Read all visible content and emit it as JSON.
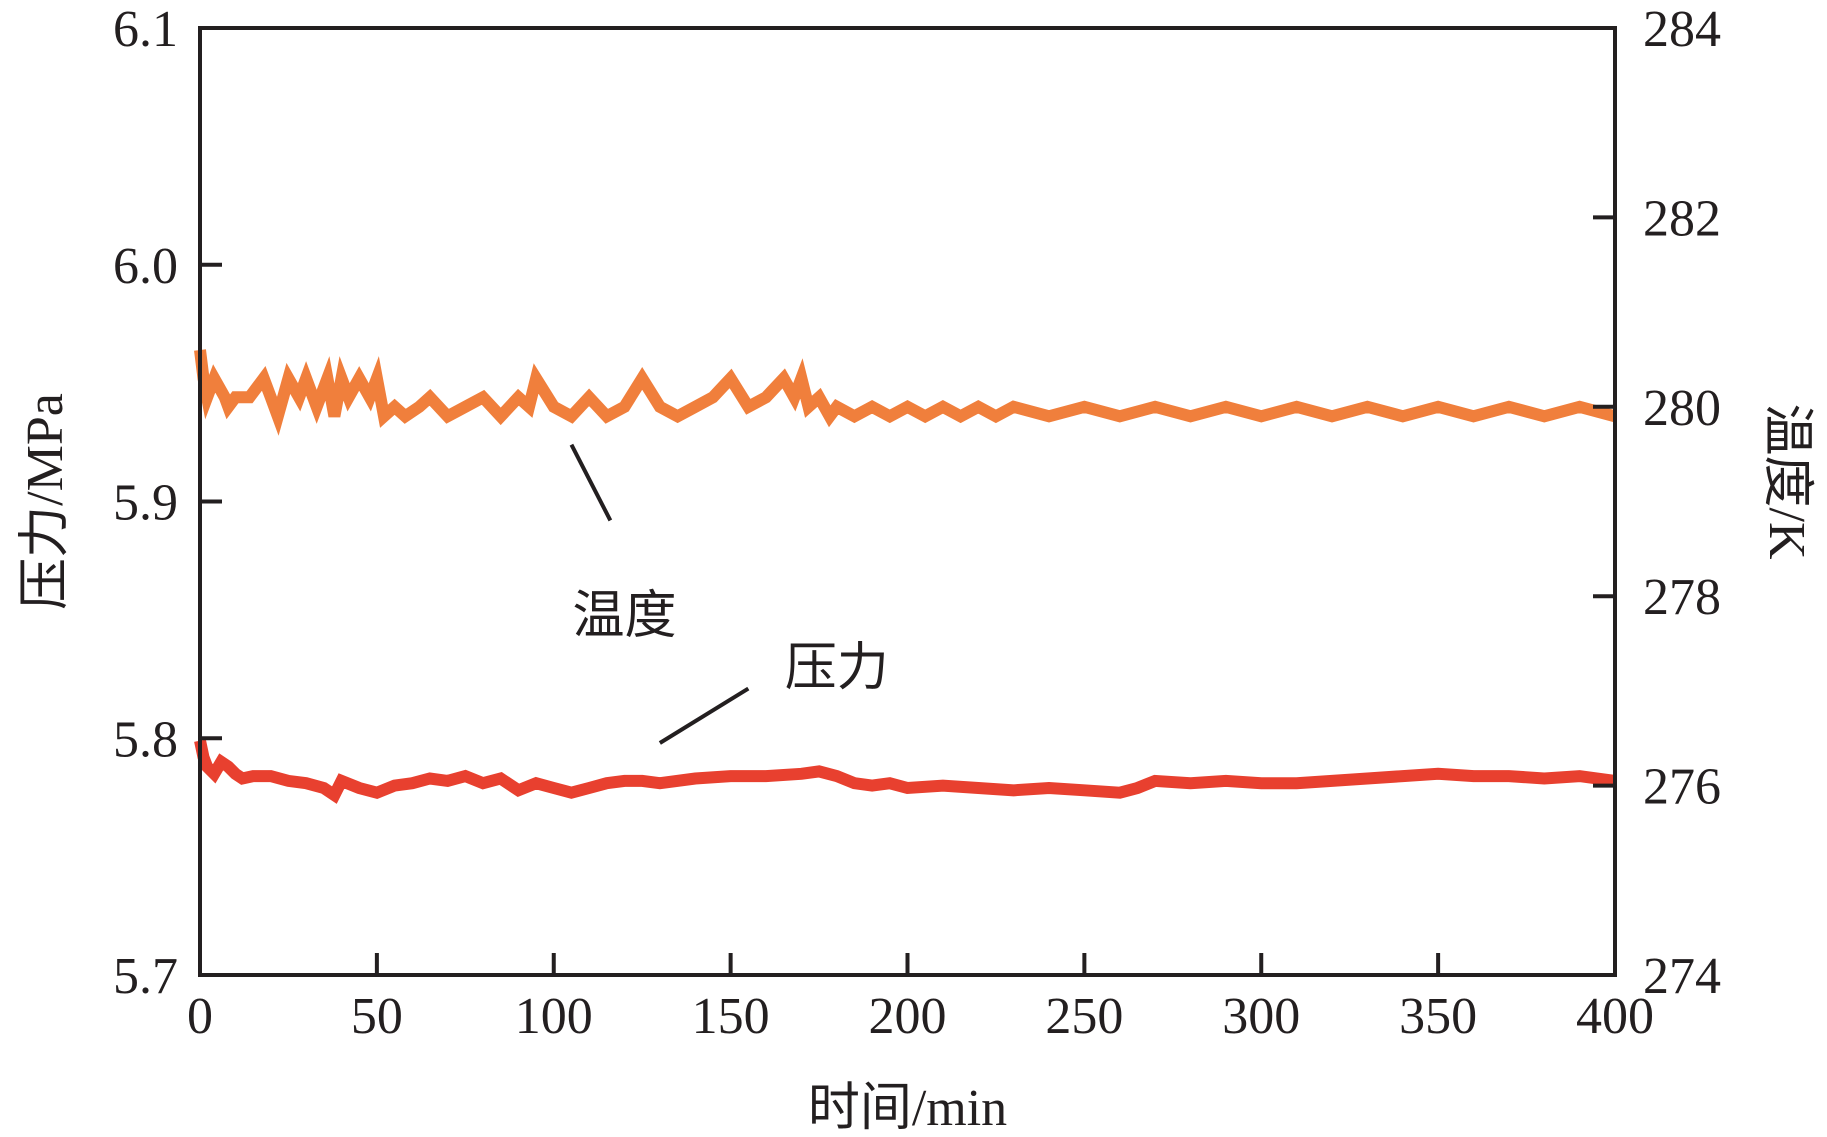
{
  "chart_data": {
    "type": "line",
    "title": "",
    "xlabel": "时间/min",
    "ylabel_left": "压力/MPa",
    "ylabel_right": "温度/K",
    "xlim": [
      0,
      400
    ],
    "ylim_left": [
      5.7,
      6.1
    ],
    "ylim_right": [
      274,
      284
    ],
    "xticks": [
      "0",
      "50",
      "100",
      "150",
      "200",
      "250",
      "300",
      "350",
      "400"
    ],
    "yticks_left": [
      "5.7",
      "5.8",
      "5.9",
      "6.0",
      "6.1"
    ],
    "yticks_right": [
      "274",
      "276",
      "278",
      "280",
      "282",
      "284"
    ],
    "grid": false,
    "colors": {
      "temperature": "#f07f3c",
      "pressure": "#e8402f",
      "axis": "#231f20"
    },
    "annotations": [
      {
        "text": "温度",
        "series": "temperature"
      },
      {
        "text": "压力",
        "series": "pressure"
      }
    ],
    "series": [
      {
        "name": "温度",
        "axis": "right",
        "x": [
          0,
          1,
          2,
          4,
          7,
          8,
          10,
          14,
          18,
          20,
          22,
          25,
          28,
          30,
          33,
          36,
          38,
          40,
          42,
          45,
          48,
          50,
          52,
          55,
          58,
          62,
          65,
          70,
          75,
          80,
          85,
          90,
          93,
          95,
          100,
          105,
          110,
          115,
          120,
          125,
          130,
          135,
          140,
          145,
          150,
          155,
          160,
          165,
          168,
          170,
          172,
          175,
          178,
          180,
          185,
          190,
          195,
          200,
          205,
          210,
          215,
          220,
          225,
          230,
          240,
          250,
          260,
          270,
          280,
          290,
          300,
          310,
          320,
          330,
          340,
          350,
          360,
          370,
          380,
          390,
          400
        ],
        "y": [
          280.6,
          280.3,
          280.1,
          280.3,
          280.1,
          280.0,
          280.1,
          280.1,
          280.3,
          280.1,
          279.9,
          280.3,
          280.1,
          280.3,
          280.0,
          280.3,
          279.9,
          280.3,
          280.1,
          280.3,
          280.1,
          280.3,
          279.9,
          280.0,
          279.9,
          280.0,
          280.1,
          279.9,
          280.0,
          280.1,
          279.9,
          280.1,
          280.0,
          280.3,
          280.0,
          279.9,
          280.1,
          279.9,
          280.0,
          280.3,
          280.0,
          279.9,
          280.0,
          280.1,
          280.3,
          280.0,
          280.1,
          280.3,
          280.1,
          280.3,
          280.0,
          280.1,
          279.9,
          280.0,
          279.9,
          280.0,
          279.9,
          280.0,
          279.9,
          280.0,
          279.9,
          280.0,
          279.9,
          280.0,
          279.9,
          280.0,
          279.9,
          280.0,
          279.9,
          280.0,
          279.9,
          280.0,
          279.9,
          280.0,
          279.9,
          280.0,
          279.9,
          280.0,
          279.9,
          280.0,
          279.9
        ]
      },
      {
        "name": "压力",
        "axis": "left",
        "x": [
          0,
          1,
          2,
          4,
          6,
          8,
          10,
          12,
          15,
          20,
          25,
          30,
          35,
          38,
          40,
          45,
          50,
          55,
          60,
          65,
          70,
          75,
          80,
          85,
          90,
          95,
          100,
          105,
          110,
          115,
          120,
          125,
          130,
          140,
          150,
          160,
          170,
          175,
          180,
          185,
          190,
          195,
          200,
          210,
          220,
          230,
          240,
          250,
          260,
          265,
          270,
          280,
          290,
          300,
          310,
          320,
          330,
          340,
          350,
          360,
          370,
          380,
          390,
          400
        ],
        "y": [
          5.799,
          5.792,
          5.788,
          5.785,
          5.79,
          5.788,
          5.785,
          5.783,
          5.784,
          5.784,
          5.782,
          5.781,
          5.779,
          5.776,
          5.782,
          5.779,
          5.777,
          5.78,
          5.781,
          5.783,
          5.782,
          5.784,
          5.781,
          5.783,
          5.778,
          5.781,
          5.779,
          5.777,
          5.779,
          5.781,
          5.782,
          5.782,
          5.781,
          5.783,
          5.784,
          5.784,
          5.785,
          5.786,
          5.784,
          5.781,
          5.78,
          5.781,
          5.779,
          5.78,
          5.779,
          5.778,
          5.779,
          5.778,
          5.777,
          5.779,
          5.782,
          5.781,
          5.782,
          5.781,
          5.781,
          5.782,
          5.783,
          5.784,
          5.785,
          5.784,
          5.784,
          5.783,
          5.784,
          5.782
        ]
      }
    ]
  }
}
